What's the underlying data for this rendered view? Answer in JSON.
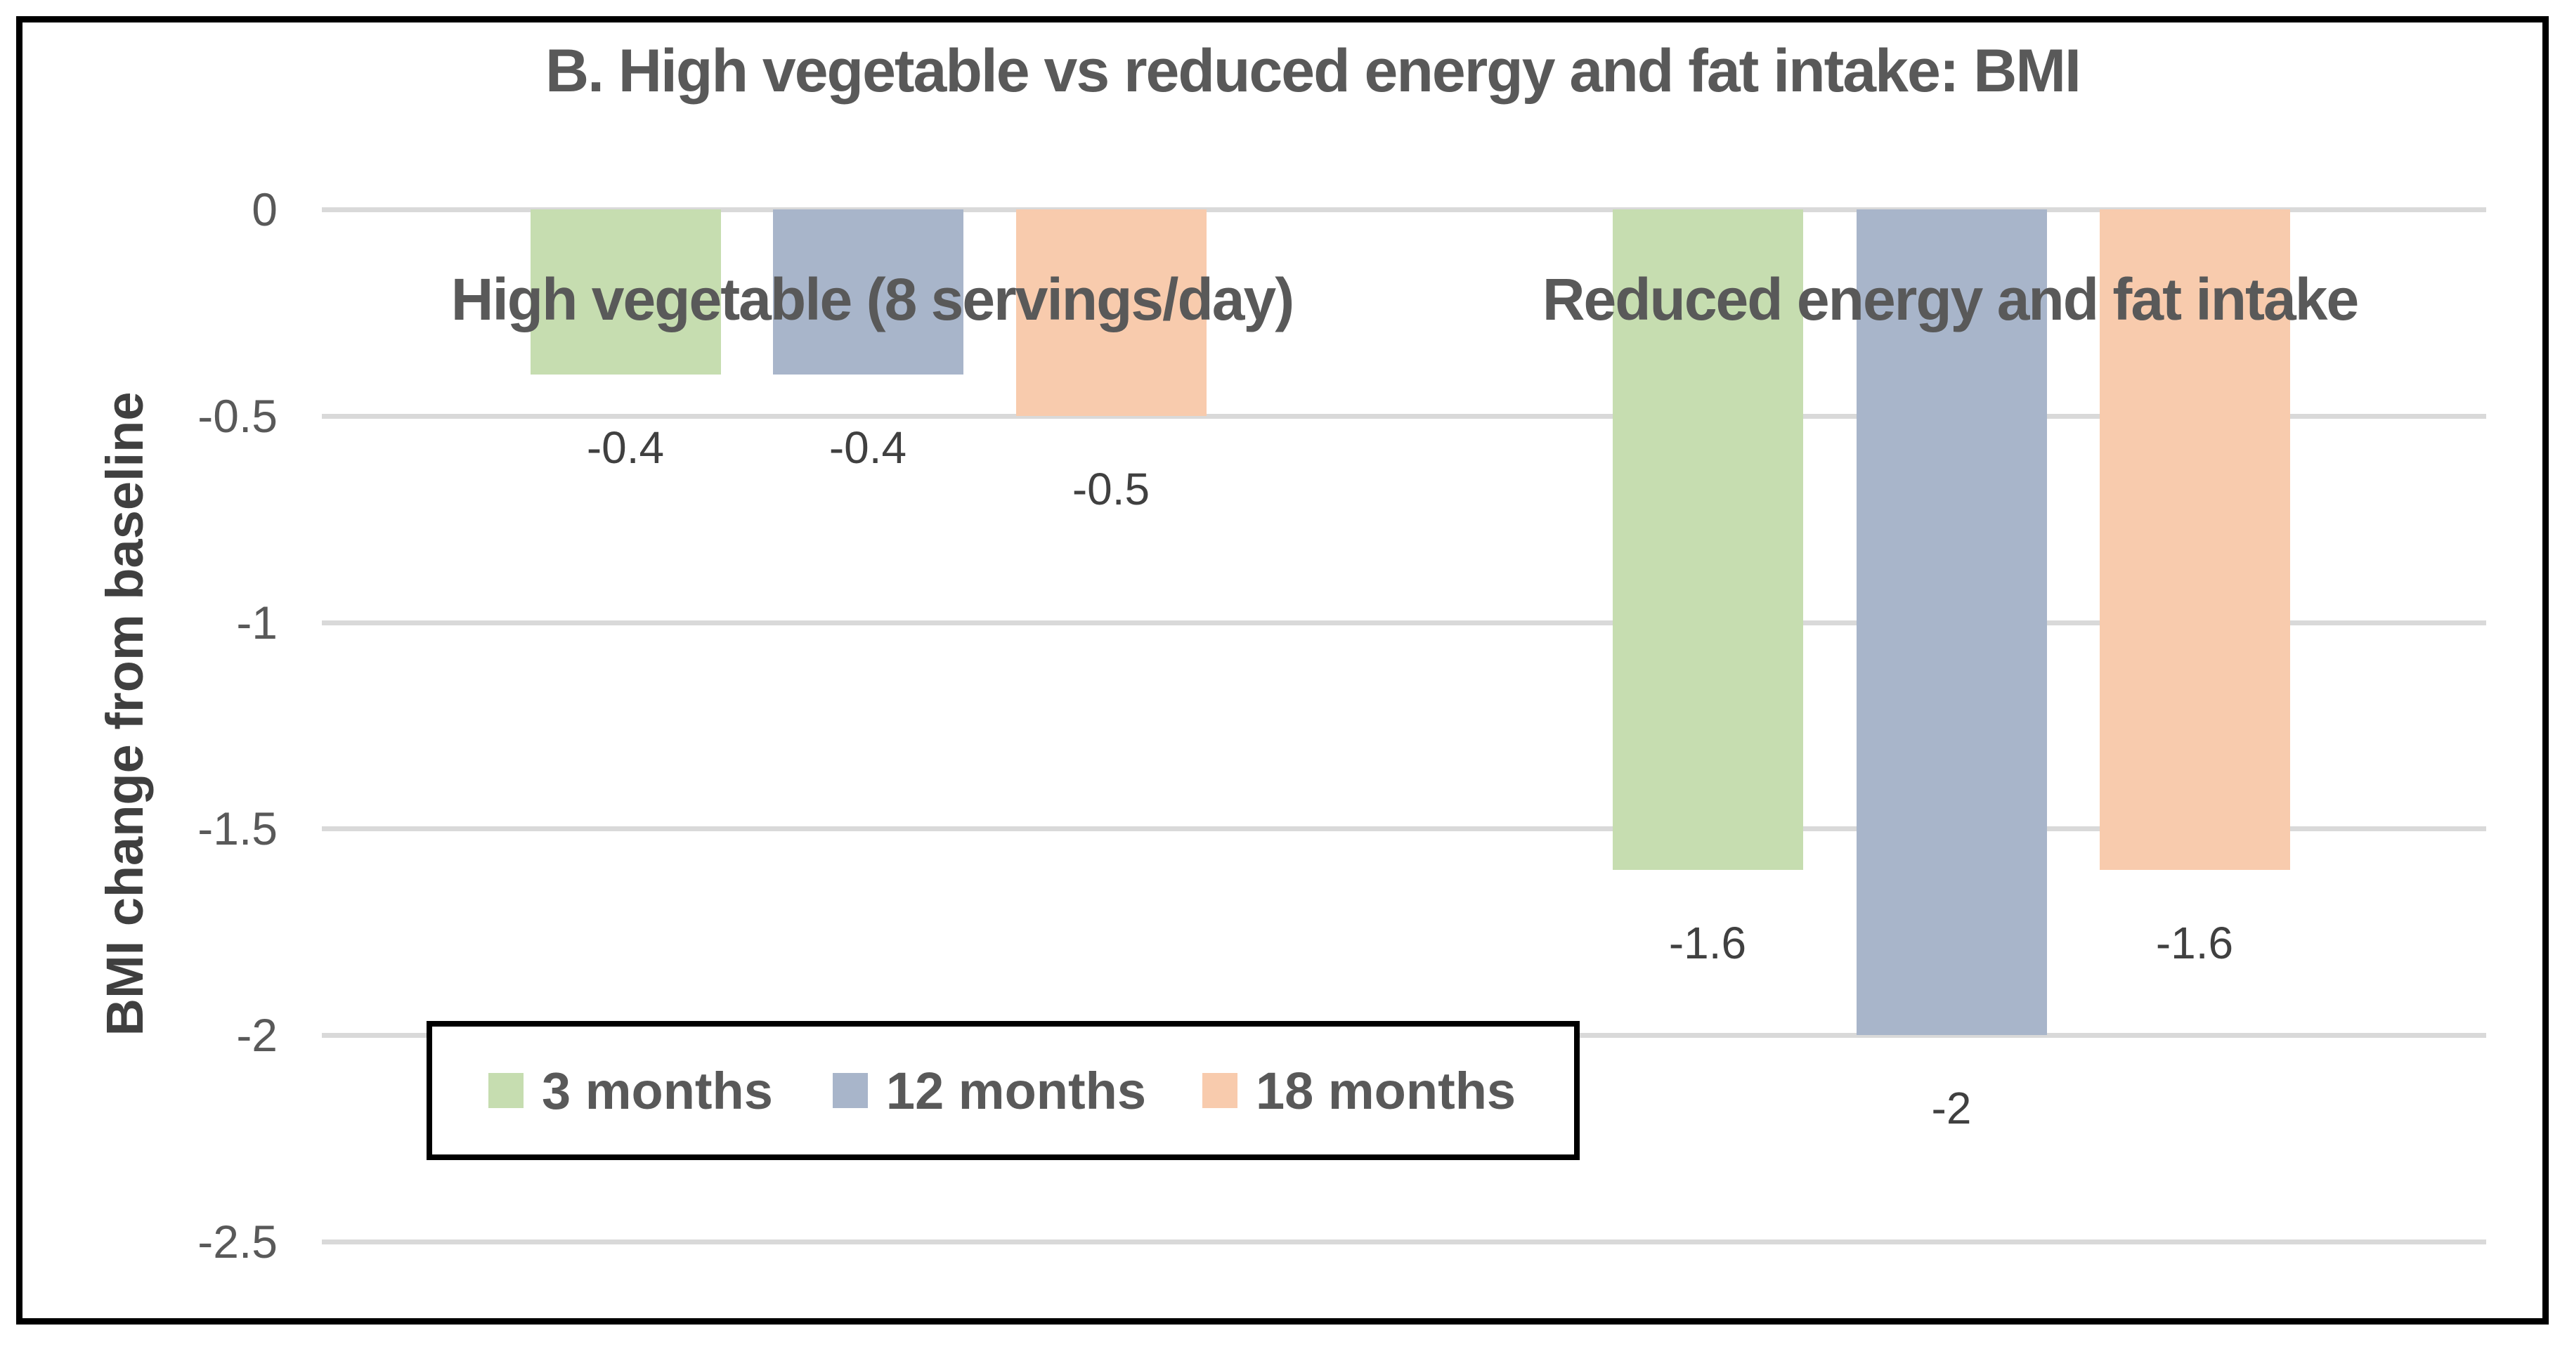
{
  "title": "B. High vegetable vs reduced energy and fat intake: BMI",
  "y_axis": {
    "label": "BMI change from baseline",
    "ticks": [
      "0",
      "-0.5",
      "-1",
      "-1.5",
      "-2",
      "-2.5"
    ]
  },
  "groups": [
    {
      "label": "High vegetable (8 servings/day)"
    },
    {
      "label": "Reduced energy and fat intake"
    }
  ],
  "display": {
    "value_labels": [
      "-0.4",
      "-0.4",
      "-0.5",
      "-1.6",
      "-2",
      "-1.6"
    ]
  },
  "legend": {
    "items": [
      {
        "label": "3 months",
        "color": "#C6DDB0"
      },
      {
        "label": "12 months",
        "color": "#A8B5CA"
      },
      {
        "label": "18 months",
        "color": "#F8CBAD"
      }
    ]
  },
  "colors": {
    "series_green": "#C6DDB0",
    "series_blue": "#A8B5CA",
    "series_orange": "#F8CBAD",
    "gridline": "#D9D9D9",
    "title_text": "#595959",
    "value_label_text": "#404040",
    "axis_title_text": "#3F3F3F",
    "frame_border": "#000000"
  },
  "chart_data": {
    "type": "bar",
    "title": "B. High vegetable vs reduced energy and fat intake: BMI",
    "xlabel": "",
    "ylabel": "BMI change from baseline",
    "categories": [
      "High vegetable (8 servings/day)",
      "Reduced energy and fat intake"
    ],
    "series": [
      {
        "name": "3 months",
        "color": "#C6DDB0",
        "values": [
          -0.4,
          -1.6
        ]
      },
      {
        "name": "12 months",
        "color": "#A8B5CA",
        "values": [
          -0.4,
          -2
        ]
      },
      {
        "name": "18 months",
        "color": "#F8CBAD",
        "values": [
          -0.5,
          -1.6
        ]
      }
    ],
    "data_labels": [
      "-0.4",
      "-0.4",
      "-0.5",
      "-1.6",
      "-2",
      "-1.6"
    ],
    "ylim": [
      -2.5,
      0
    ],
    "y_tick_step": 0.5,
    "grid": true,
    "legend_position": "bottom-left",
    "data_labels_visible": true
  }
}
